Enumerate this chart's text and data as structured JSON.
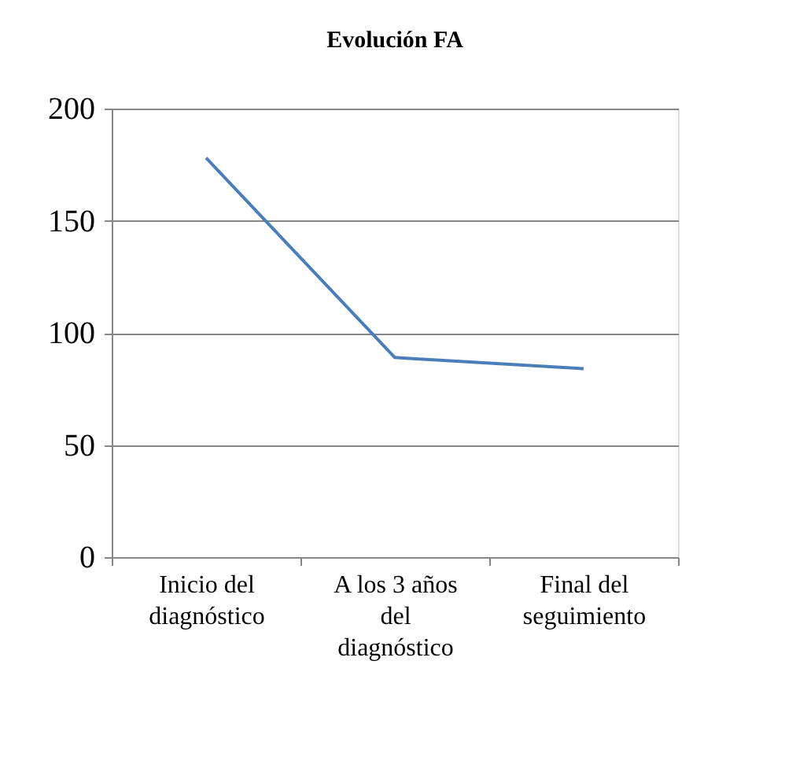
{
  "chart_data": {
    "type": "line",
    "title": "Evolución FA",
    "categories": [
      "Inicio del\ndiagnóstico",
      "A los 3 años\ndel\ndiagnóstico",
      "Final del\nseguimiento"
    ],
    "series": [
      {
        "color": "#4a7ebb",
        "values": [
          178,
          89,
          84
        ]
      }
    ],
    "ylim": [
      0,
      200
    ],
    "yticks": [
      0,
      50,
      100,
      150,
      200
    ],
    "grid": "y",
    "marker": "none",
    "line_style": "solid"
  }
}
